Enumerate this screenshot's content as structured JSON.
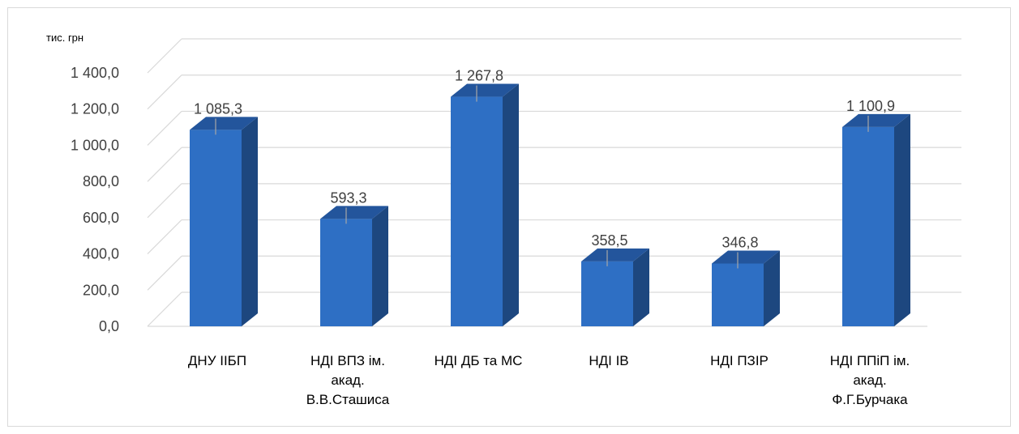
{
  "chart_data": {
    "type": "bar",
    "style": "3d-column",
    "unit_label": "тис. грн",
    "categories": [
      [
        "ДНУ ІІБП"
      ],
      [
        "НДІ ВПЗ ім.",
        "акад.",
        "В.В.Сташиса"
      ],
      [
        "НДІ ДБ та МС"
      ],
      [
        "НДІ ІВ"
      ],
      [
        "НДІ ПЗІР"
      ],
      [
        "НДІ ППіП ім.",
        "акад.",
        "Ф.Г.Бурчака"
      ]
    ],
    "values": [
      1085.3,
      593.3,
      1267.8,
      358.5,
      346.8,
      1100.9
    ],
    "value_labels": [
      "1 085,3",
      "593,3",
      "1 267,8",
      "358,5",
      "346,8",
      "1 100,9"
    ],
    "ylim": [
      0,
      1400
    ],
    "yticks": [
      0,
      200,
      400,
      600,
      800,
      1000,
      1200,
      1400
    ],
    "ytick_labels": [
      "0,0",
      "200,0",
      "400,0",
      "600,0",
      "800,0",
      "1 000,0",
      "1 200,0",
      "1 400,0"
    ],
    "grid": true,
    "legend": false,
    "colors": {
      "bar_front": "#2e6fc4",
      "bar_side": "#1d477f",
      "bar_top": "#23559c",
      "grid": "#d9d9d9",
      "text": "#404040"
    }
  }
}
